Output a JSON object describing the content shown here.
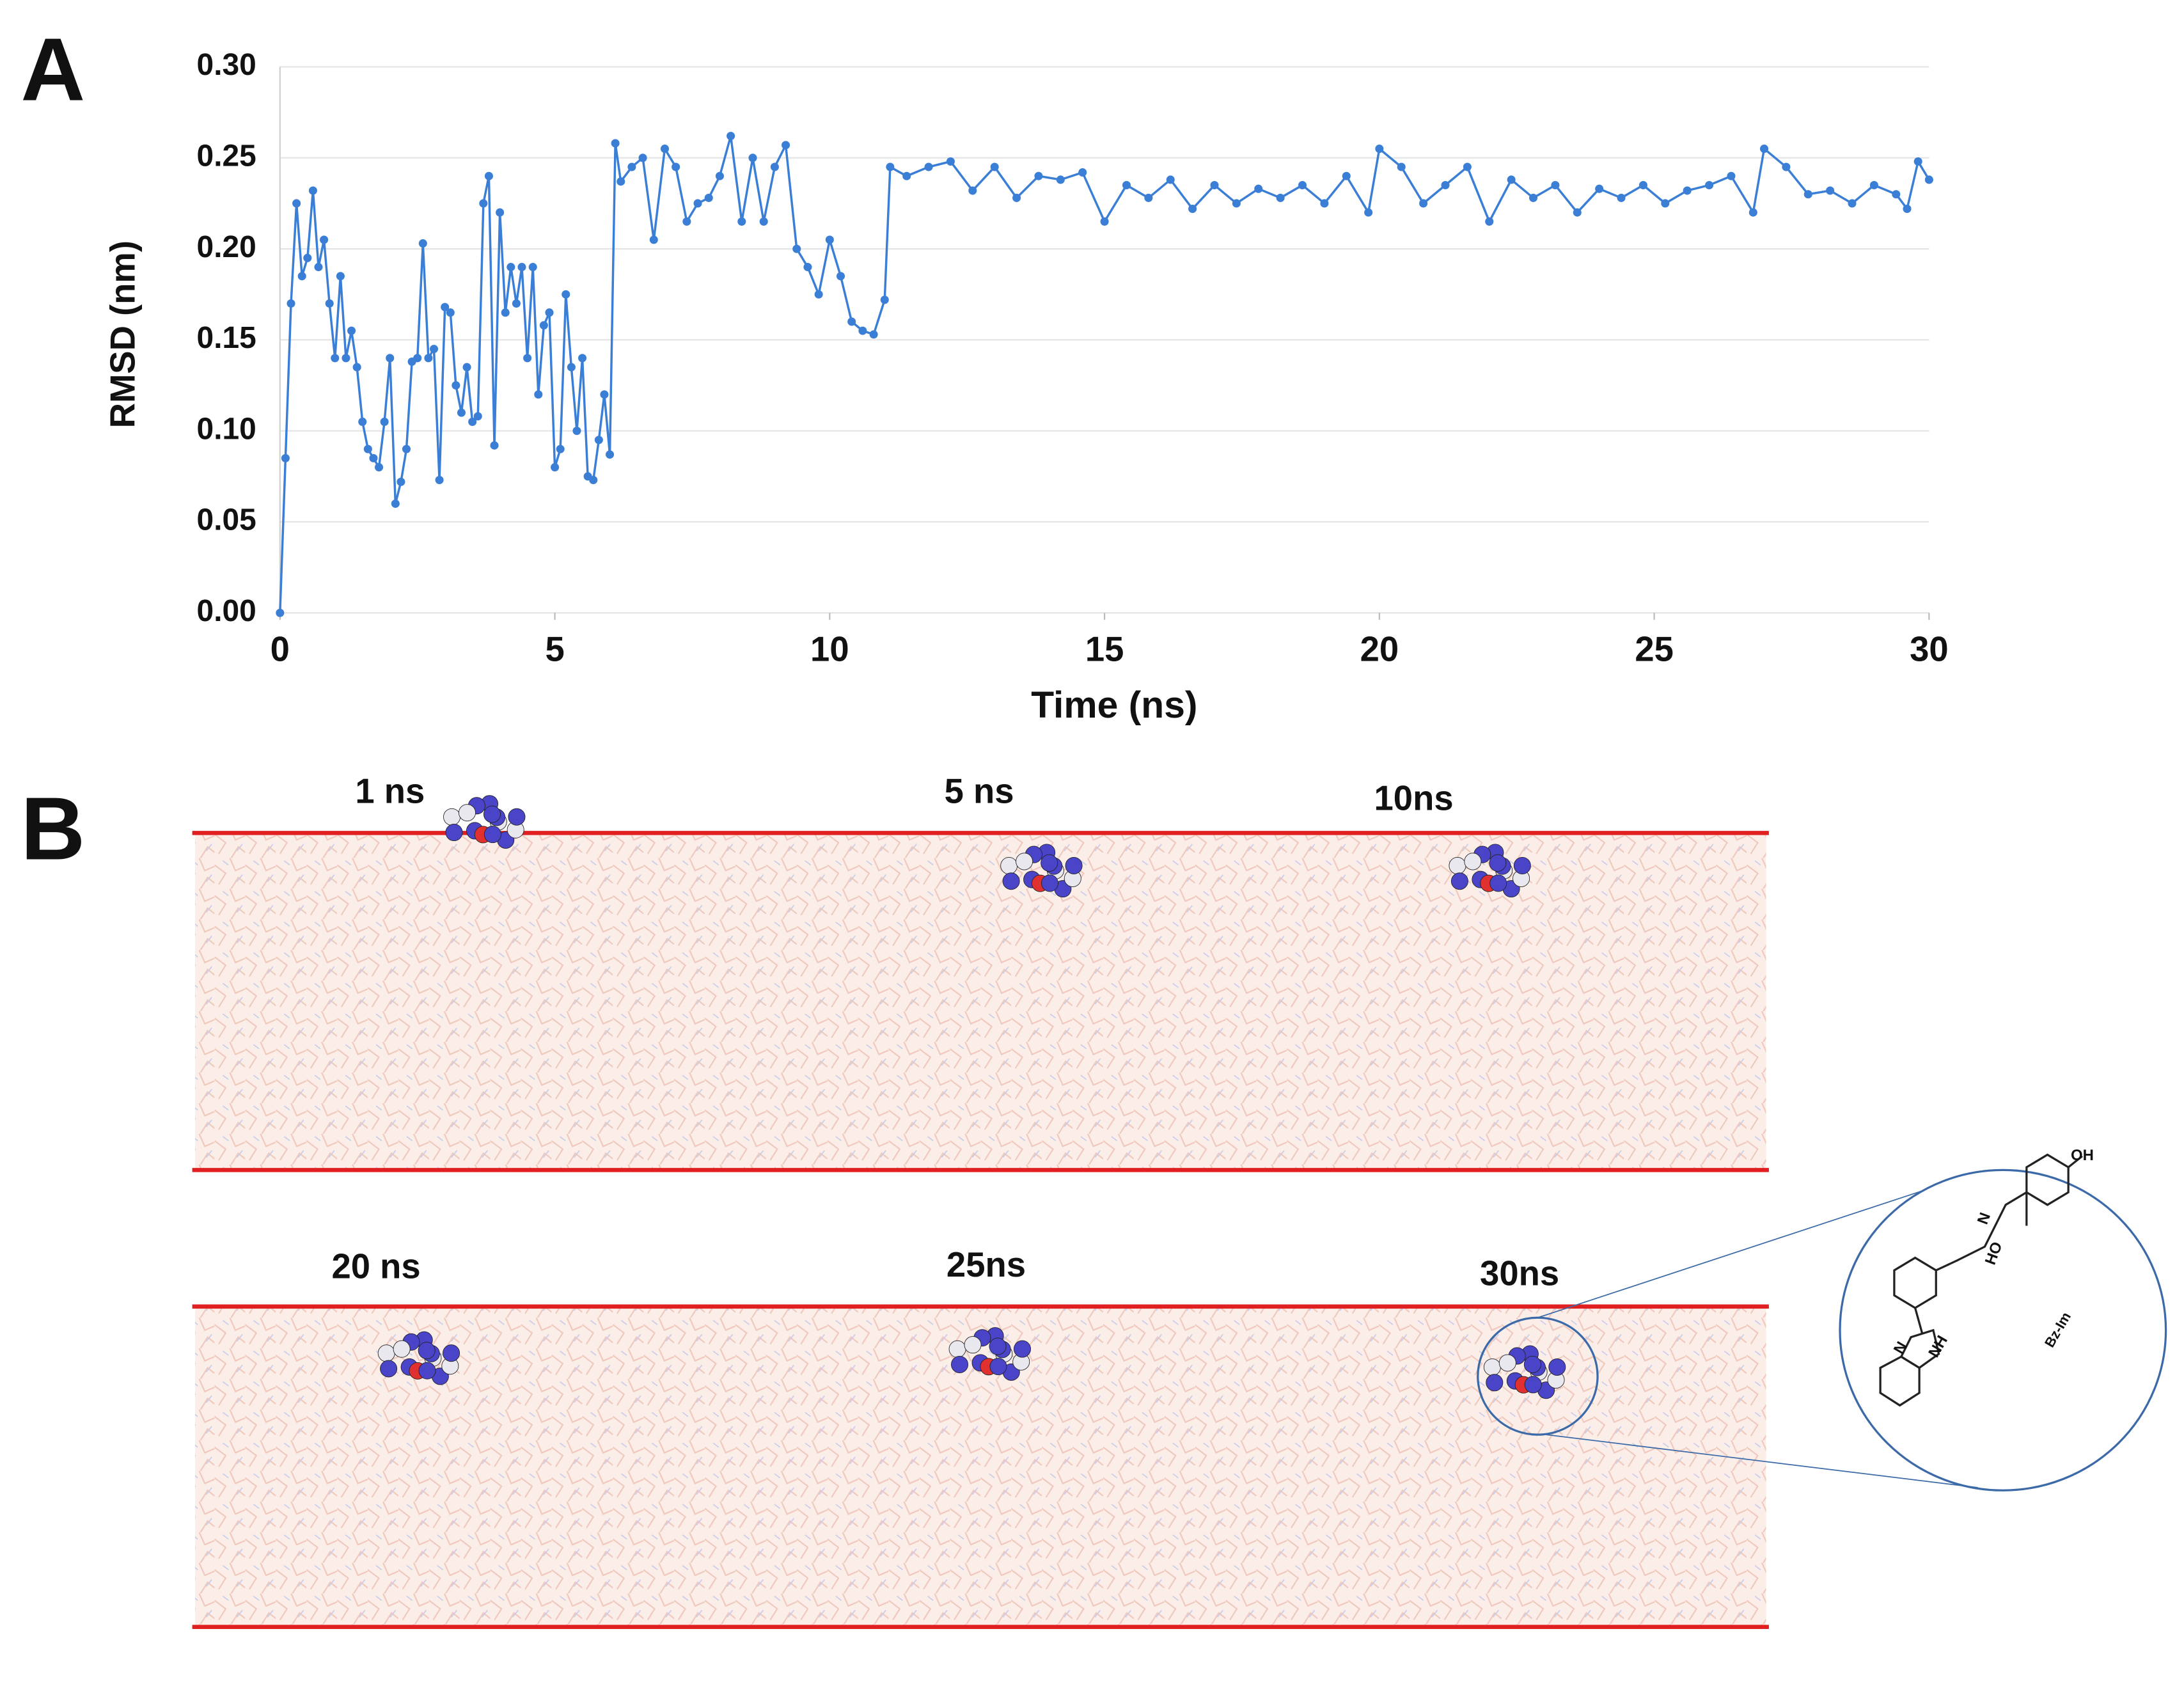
{
  "panel_a_label": "A",
  "chart_data": {
    "type": "line",
    "xlabel": "Time (ns)",
    "ylabel": "RMSD (nm)",
    "xlim": [
      0,
      30
    ],
    "xticks": [
      0,
      5,
      10,
      15,
      20,
      25,
      30
    ],
    "ylim": [
      0,
      0.3
    ],
    "yticks": [
      {
        "value": 0,
        "label": "0.00"
      },
      0.05,
      {
        "value": 0.1,
        "label": "0.10"
      },
      0.15,
      {
        "value": 0.2,
        "label": "0.20"
      },
      0.25,
      {
        "value": 0.3,
        "label": "0.30"
      }
    ],
    "grid": true,
    "series": [
      {
        "color": "#3a7fd5",
        "x": [
          0,
          0.1,
          0.2,
          0.3,
          0.4,
          0.5,
          0.6,
          0.7,
          0.8,
          0.9,
          1.0,
          1.1,
          1.2,
          1.3,
          1.4,
          1.5,
          1.6,
          1.7,
          1.8,
          1.9,
          2.0,
          2.1,
          2.2,
          2.3,
          2.4,
          2.5,
          2.6,
          2.7,
          2.8,
          2.9,
          3.0,
          3.1,
          3.2,
          3.3,
          3.4,
          3.5,
          3.6,
          3.7,
          3.8,
          3.9,
          4.0,
          4.1,
          4.2,
          4.3,
          4.4,
          4.5,
          4.6,
          4.7,
          4.8,
          4.9,
          5.0,
          5.1,
          5.2,
          5.3,
          5.4,
          5.5,
          5.6,
          5.7,
          5.8,
          5.9,
          6.0,
          6.1,
          6.2,
          6.4,
          6.6,
          6.8,
          7.0,
          7.2,
          7.4,
          7.6,
          7.8,
          8.0,
          8.2,
          8.4,
          8.6,
          8.8,
          9.0,
          9.2,
          9.4,
          9.6,
          9.8,
          10.0,
          10.2,
          10.4,
          10.6,
          10.8,
          11.0,
          11.1,
          11.4,
          11.8,
          12.2,
          12.6,
          13.0,
          13.4,
          13.8,
          14.2,
          14.6,
          15.0,
          15.4,
          15.8,
          16.2,
          16.6,
          17.0,
          17.4,
          17.8,
          18.2,
          18.6,
          19.0,
          19.4,
          19.8,
          20.0,
          20.4,
          20.8,
          21.2,
          21.6,
          22.0,
          22.4,
          22.8,
          23.2,
          23.6,
          24.0,
          24.4,
          24.8,
          25.2,
          25.6,
          26.0,
          26.4,
          26.8,
          27.0,
          27.4,
          27.8,
          28.2,
          28.6,
          29.0,
          29.4,
          29.6,
          29.8,
          30.0
        ],
        "values": [
          0,
          0.085,
          0.17,
          0.225,
          0.185,
          0.195,
          0.232,
          0.19,
          0.205,
          0.17,
          0.14,
          0.185,
          0.14,
          0.155,
          0.135,
          0.105,
          0.09,
          0.085,
          0.08,
          0.105,
          0.14,
          0.06,
          0.072,
          0.09,
          0.138,
          0.14,
          0.203,
          0.14,
          0.145,
          0.073,
          0.168,
          0.165,
          0.125,
          0.11,
          0.135,
          0.105,
          0.108,
          0.225,
          0.24,
          0.092,
          0.22,
          0.165,
          0.19,
          0.17,
          0.19,
          0.14,
          0.19,
          0.12,
          0.158,
          0.165,
          0.08,
          0.09,
          0.175,
          0.135,
          0.1,
          0.14,
          0.075,
          0.073,
          0.095,
          0.12,
          0.087,
          0.258,
          0.237,
          0.245,
          0.25,
          0.205,
          0.255,
          0.245,
          0.215,
          0.225,
          0.228,
          0.24,
          0.262,
          0.215,
          0.25,
          0.215,
          0.245,
          0.257,
          0.2,
          0.19,
          0.175,
          0.205,
          0.185,
          0.16,
          0.155,
          0.153,
          0.172,
          0.245,
          0.24,
          0.245,
          0.248,
          0.232,
          0.245,
          0.228,
          0.24,
          0.238,
          0.242,
          0.215,
          0.235,
          0.228,
          0.238,
          0.222,
          0.235,
          0.225,
          0.233,
          0.228,
          0.235,
          0.225,
          0.24,
          0.22,
          0.255,
          0.245,
          0.225,
          0.235,
          0.245,
          0.215,
          0.238,
          0.228,
          0.235,
          0.22,
          0.233,
          0.228,
          0.235,
          0.225,
          0.232,
          0.235,
          0.24,
          0.22,
          0.255,
          0.245,
          0.23,
          0.232,
          0.225,
          0.235,
          0.23,
          0.222,
          0.248,
          0.238
        ]
      }
    ]
  },
  "panel_b": {
    "label": "B",
    "time_labels": [
      "1 ns",
      "5 ns",
      "10ns",
      "20 ns",
      "25ns",
      "30ns"
    ],
    "structure_labels": [
      "OH",
      "HO",
      "N",
      "N",
      "NH"
    ],
    "compound": "Bz-Im"
  }
}
